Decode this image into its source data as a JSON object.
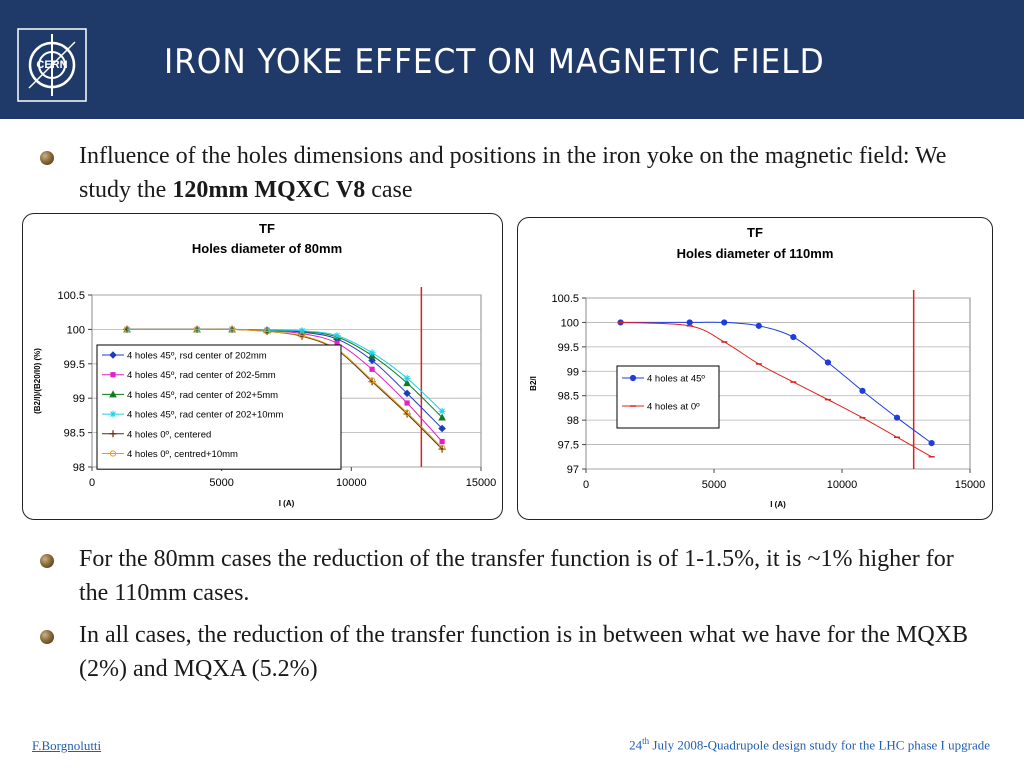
{
  "header": {
    "title": "Iron yoke effect on magnetic field",
    "logo_text": "CERN",
    "background": "#1f3a68"
  },
  "bullets": [
    {
      "text_before": "Influence of the holes dimensions and positions in the iron yoke on the magnetic field: We study the ",
      "text_bold": "120mm MQXC V8",
      "text_after": " case"
    },
    {
      "text": "For the 80mm cases the reduction of the transfer function is of 1-1.5%, it is ~1% higher for the 110mm cases."
    },
    {
      "text": "In all cases, the reduction of the transfer function is in between what we have for the MQXB (2%) and MQXA (5.2%)"
    }
  ],
  "footer": {
    "author": "F.Borgnolutti",
    "date_day": "24",
    "date_sup": "th",
    "date_rest": " July 2008-Quadrupole design study for the LHC phase I upgrade"
  },
  "chart_data": [
    {
      "type": "line",
      "title": "TF",
      "subtitle": "Holes diameter of 80mm",
      "xlabel": "I (A)",
      "ylabel": "(B2/I)/(B20/I0) (%)",
      "xlim": [
        0,
        15000
      ],
      "ylim": [
        98,
        100.5
      ],
      "xticks": [
        "0",
        "5000",
        "10000",
        "15000"
      ],
      "yticks": [
        "98",
        "98.5",
        "99",
        "99.5",
        "100",
        "100.5"
      ],
      "ytick_values": [
        98,
        98.5,
        99,
        99.5,
        100,
        100.5
      ],
      "xtick_values": [
        0,
        5000,
        10000,
        15000
      ],
      "grid": true,
      "legend_position": "left",
      "vertical_line_x": 12700,
      "vertical_line_color": "#e0201c",
      "series": [
        {
          "name": "4 holes 45º, rsd center of 202mm",
          "color": "#1f3cbf",
          "marker": "diamond",
          "x": [
            1350,
            4050,
            5400,
            6750,
            8100,
            9450,
            10800,
            12150,
            13500
          ],
          "y": [
            100.0,
            100.0,
            100.0,
            99.99,
            99.96,
            99.86,
            99.55,
            99.07,
            98.56
          ]
        },
        {
          "name": "4 holes 45º, rad center of 202-5mm",
          "color": "#e020c8",
          "marker": "square",
          "x": [
            1350,
            4050,
            5400,
            6750,
            8100,
            9450,
            10800,
            12150,
            13500
          ],
          "y": [
            100.0,
            100.0,
            100.0,
            99.98,
            99.94,
            99.8,
            99.42,
            98.93,
            98.37
          ]
        },
        {
          "name": "4 holes 45º, rad center of 202+5mm",
          "color": "#0f7a1f",
          "marker": "triangle",
          "x": [
            1350,
            4050,
            5400,
            6750,
            8100,
            9450,
            10800,
            12150,
            13500
          ],
          "y": [
            100.0,
            100.0,
            100.0,
            99.99,
            99.97,
            99.89,
            99.62,
            99.22,
            98.72
          ]
        },
        {
          "name": "4 holes 45º, rad center of 202+10mm",
          "color": "#20d0e8",
          "marker": "star",
          "x": [
            1350,
            4050,
            5400,
            6750,
            8100,
            9450,
            10800,
            12150,
            13500
          ],
          "y": [
            100.0,
            100.0,
            100.0,
            99.99,
            99.98,
            99.91,
            99.66,
            99.29,
            98.81
          ]
        },
        {
          "name": "4 holes 0º, centered",
          "color": "#5a2d0c",
          "marker": "plus",
          "x": [
            1350,
            4050,
            5400,
            6750,
            8100,
            9450,
            10800,
            12150,
            13500
          ],
          "y": [
            100.0,
            100.0,
            100.0,
            99.97,
            99.9,
            99.7,
            99.24,
            98.77,
            98.26
          ]
        },
        {
          "name": "4 holes 0º, centred+10mm",
          "color": "#e0a020",
          "marker": "circle",
          "x": [
            1350,
            4050,
            5400,
            6750,
            8100,
            9450,
            10800,
            12150,
            13500
          ],
          "y": [
            100.0,
            100.0,
            100.0,
            99.97,
            99.91,
            99.71,
            99.26,
            98.79,
            98.28
          ]
        }
      ]
    },
    {
      "type": "line",
      "title": "TF",
      "subtitle": "Holes diameter of 110mm",
      "xlabel": "I (A)",
      "ylabel": "B2/I",
      "xlim": [
        0,
        15000
      ],
      "ylim": [
        97,
        100.5
      ],
      "xticks": [
        "0",
        "5000",
        "10000",
        "15000"
      ],
      "yticks": [
        "97",
        "97.5",
        "98",
        "98.5",
        "99",
        "99.5",
        "100",
        "100.5"
      ],
      "ytick_values": [
        97,
        97.5,
        98,
        98.5,
        99,
        99.5,
        100,
        100.5
      ],
      "xtick_values": [
        0,
        5000,
        10000,
        15000
      ],
      "grid": true,
      "legend_position": "left",
      "vertical_line_x": 12800,
      "vertical_line_color": "#e0201c",
      "series": [
        {
          "name": "4 holes at 45º",
          "color": "#1f3cdf",
          "marker": "circle",
          "x": [
            1350,
            4050,
            5400,
            6750,
            8100,
            9450,
            10800,
            12150,
            13500
          ],
          "y": [
            100.0,
            100.0,
            100.0,
            99.93,
            99.7,
            99.18,
            98.6,
            98.05,
            97.53
          ]
        },
        {
          "name": "4 holes at 0º",
          "color": "#e0201c",
          "marker": "dash",
          "x": [
            1350,
            4050,
            5400,
            6750,
            8100,
            9450,
            10800,
            12150,
            13500
          ],
          "y": [
            100.0,
            99.93,
            99.6,
            99.15,
            98.78,
            98.42,
            98.05,
            97.65,
            97.25
          ]
        }
      ]
    }
  ]
}
